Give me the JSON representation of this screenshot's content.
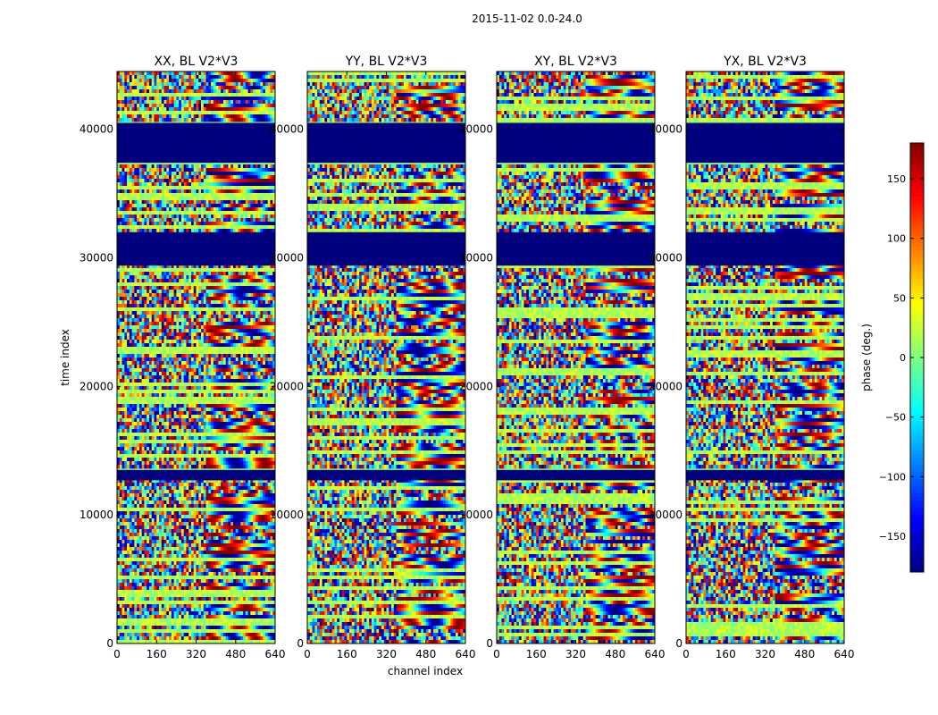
{
  "figure": {
    "suptitle": "2015-11-02 0.0-24.0",
    "ylabel": "time index",
    "xlabel": "channel index"
  },
  "chart_data": [
    {
      "type": "heatmap",
      "title": "XX, BL V2*V3",
      "xlabel": "channel index",
      "ylabel": "time index",
      "xlim": [
        0,
        640
      ],
      "ylim": [
        0,
        44500
      ],
      "xticks": [
        0,
        160,
        320,
        480,
        640
      ],
      "yticks": [
        0,
        10000,
        20000,
        30000,
        40000
      ],
      "colormap": "jet",
      "value_range": [
        -180,
        180
      ],
      "value_label": "phase (deg.)",
      "flagged_time_ranges": [
        [
          37400,
          40500
        ],
        [
          29400,
          32000
        ],
        [
          12700,
          13500
        ]
      ]
    },
    {
      "type": "heatmap",
      "title": "YY, BL V2*V3",
      "xlabel": "channel index",
      "ylabel": "time index",
      "xlim": [
        0,
        640
      ],
      "ylim": [
        0,
        44500
      ],
      "xticks": [
        0,
        160,
        320,
        480,
        640
      ],
      "yticks": [
        0,
        10000,
        20000,
        30000,
        40000
      ],
      "colormap": "jet",
      "value_range": [
        -180,
        180
      ],
      "value_label": "phase (deg.)",
      "flagged_time_ranges": [
        [
          37400,
          40500
        ],
        [
          29400,
          32000
        ],
        [
          12700,
          13500
        ]
      ]
    },
    {
      "type": "heatmap",
      "title": "XY, BL V2*V3",
      "xlabel": "channel index",
      "ylabel": "time index",
      "xlim": [
        0,
        640
      ],
      "ylim": [
        0,
        44500
      ],
      "xticks": [
        0,
        160,
        320,
        480,
        640
      ],
      "yticks": [
        0,
        10000,
        20000,
        30000,
        40000
      ],
      "colormap": "jet",
      "value_range": [
        -180,
        180
      ],
      "value_label": "phase (deg.)",
      "flagged_time_ranges": [
        [
          37400,
          40500
        ],
        [
          29400,
          32000
        ],
        [
          12700,
          13500
        ]
      ]
    },
    {
      "type": "heatmap",
      "title": "YX, BL V2*V3",
      "xlabel": "channel index",
      "ylabel": "time index",
      "xlim": [
        0,
        640
      ],
      "ylim": [
        0,
        44500
      ],
      "xticks": [
        0,
        160,
        320,
        480,
        640
      ],
      "yticks": [
        0,
        10000,
        20000,
        30000,
        40000
      ],
      "colormap": "jet",
      "value_range": [
        -180,
        180
      ],
      "value_label": "phase (deg.)",
      "flagged_time_ranges": [
        [
          37400,
          40500
        ],
        [
          29400,
          32000
        ],
        [
          12700,
          13500
        ]
      ]
    }
  ],
  "colorbar": {
    "label": "phase (deg.)",
    "range": [
      -180,
      180
    ],
    "ticks": [
      -150,
      -100,
      -50,
      0,
      50,
      100,
      150
    ],
    "tick_labels": [
      "−150",
      "−100",
      "−50",
      "0",
      "50",
      "100",
      "150"
    ],
    "colormap": "jet"
  }
}
